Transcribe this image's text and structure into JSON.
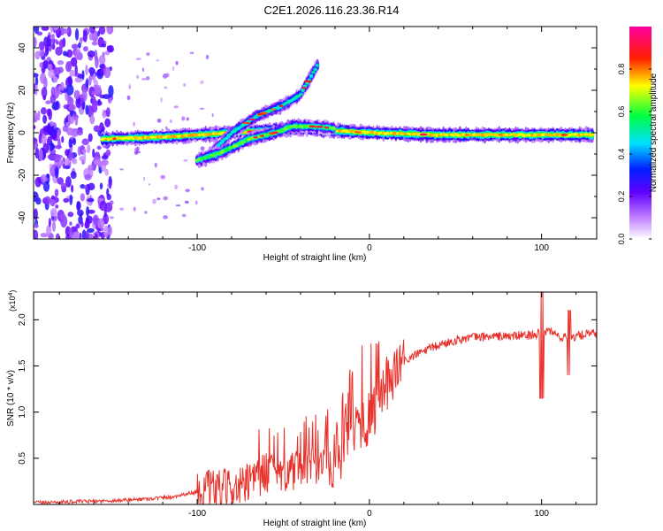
{
  "title": "C2E1.2026.116.23.36.R14",
  "chart_data": [
    {
      "id": "spectrogram",
      "type": "heatmap",
      "xlabel": "Height of straight line (km)",
      "ylabel": "Frequency (Hz)",
      "xlim": [
        -195,
        132
      ],
      "ylim": [
        -50,
        50
      ],
      "xticks": [
        -100,
        0,
        100
      ],
      "yticks": [
        -40,
        -20,
        0,
        20,
        40
      ],
      "colorbar": {
        "label": "Normalized spectral amplitude",
        "range": [
          0,
          1
        ],
        "ticks": [
          0.0,
          0.2,
          0.4,
          0.6,
          0.8
        ],
        "tick_labels": [
          "0.0",
          "0.2",
          "0.4",
          "0.6",
          "0.8"
        ],
        "colormap": [
          "#ffffff",
          "#8a00ff",
          "#0000ff",
          "#00ffff",
          "#00ff00",
          "#ffff00",
          "#ff0000",
          "#ff00aa"
        ]
      },
      "traces": [
        {
          "name": "carrier",
          "x": [
            -155,
            -120,
            -100,
            -80,
            -60,
            -40,
            -20,
            0,
            40,
            80,
            110,
            130
          ],
          "y": [
            -3,
            -2,
            -1,
            0,
            1,
            2,
            1,
            0,
            -1,
            -1,
            -1,
            -1
          ],
          "amplitude": 0.6
        },
        {
          "name": "upper-branch",
          "x": [
            -95,
            -80,
            -65,
            -50,
            -40,
            -30
          ],
          "y": [
            -12,
            0,
            8,
            13,
            18,
            32
          ],
          "amplitude": 0.4
        },
        {
          "name": "lower-branch",
          "x": [
            -100,
            -85,
            -70,
            -55,
            -45,
            -32,
            -20
          ],
          "y": [
            -13,
            -9,
            -3,
            0,
            3,
            3,
            2
          ],
          "amplitude": 0.5
        }
      ]
    },
    {
      "id": "snr",
      "type": "line",
      "xlabel": "Height of straight line (km)",
      "ylabel": "SNR (10 * v/v)",
      "scale_label": "(x10",
      "scale_exponent": "4",
      "xlim": [
        -195,
        132
      ],
      "ylim": [
        0,
        2.3
      ],
      "xticks": [
        -100,
        0,
        100
      ],
      "yticks": [
        0.5,
        1.0,
        1.5,
        2.0
      ],
      "ytick_labels": [
        "0.5",
        "1.0",
        "1.5",
        "2.0"
      ],
      "color": "#e8302a",
      "series": [
        {
          "name": "SNR",
          "x": [
            -195,
            -170,
            -150,
            -130,
            -115,
            -105,
            -95,
            -85,
            -75,
            -70,
            -62,
            -55,
            -45,
            -38,
            -32,
            -25,
            -20,
            -15,
            -10,
            -5,
            0,
            5,
            10,
            15,
            20,
            30,
            40,
            50,
            60,
            70,
            80,
            90,
            95,
            100,
            105,
            110,
            115,
            120,
            125,
            132
          ],
          "y": [
            0.02,
            0.03,
            0.04,
            0.06,
            0.08,
            0.12,
            0.15,
            0.16,
            0.18,
            0.22,
            0.33,
            0.38,
            0.35,
            0.36,
            0.4,
            0.45,
            0.35,
            0.55,
            0.85,
            0.88,
            0.92,
            1.1,
            1.3,
            1.45,
            1.55,
            1.65,
            1.72,
            1.78,
            1.81,
            1.82,
            1.82,
            1.83,
            1.84,
            1.86,
            1.88,
            1.82,
            1.8,
            1.82,
            1.84,
            1.85
          ]
        }
      ]
    }
  ]
}
